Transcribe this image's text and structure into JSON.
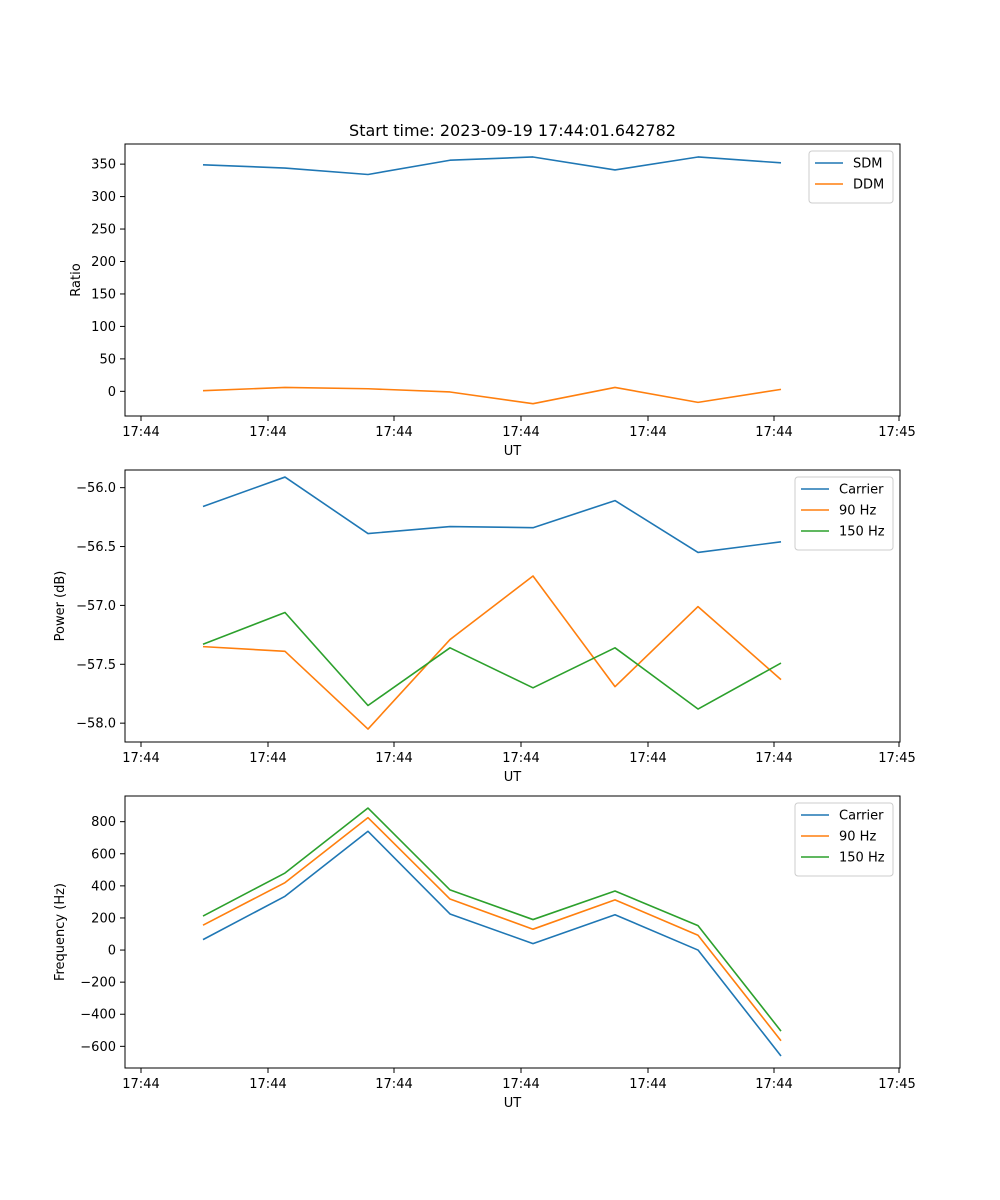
{
  "chart_data": [
    {
      "type": "line",
      "title": "Start time: 2023-09-19 17:44:01.642782",
      "xlabel": "UT",
      "ylabel": "Ratio",
      "x_tick_labels": [
        "17:44",
        "17:44",
        "17:44",
        "17:44",
        "17:44",
        "17:44",
        "17:44",
        "17:45"
      ],
      "y_ticks": [
        0,
        50,
        100,
        150,
        200,
        250,
        300,
        350
      ],
      "y_tick_labels": [
        "0",
        "50",
        "100",
        "150",
        "200",
        "250",
        "300",
        "350"
      ],
      "ylim": [
        -38,
        381
      ],
      "legend_position": "top-right",
      "series": [
        {
          "name": "SDM",
          "color": "#1f77b4",
          "values": [
            349,
            344,
            334,
            356,
            361,
            341,
            361,
            352
          ]
        },
        {
          "name": "DDM",
          "color": "#ff7f0e",
          "values": [
            1,
            6,
            4,
            -1,
            -19,
            6,
            -17,
            3
          ]
        }
      ]
    },
    {
      "type": "line",
      "title": "",
      "xlabel": "UT",
      "ylabel": "Power (dB)",
      "x_tick_labels": [
        "17:44",
        "17:44",
        "17:44",
        "17:44",
        "17:44",
        "17:44",
        "17:44",
        "17:45"
      ],
      "y_ticks": [
        -58.0,
        -57.5,
        -57.0,
        -56.5,
        -56.0
      ],
      "y_tick_labels": [
        "−58.0",
        "−57.5",
        "−57.0",
        "−56.5",
        "−56.0"
      ],
      "ylim": [
        -58.16,
        -55.85
      ],
      "legend_position": "top-right",
      "series": [
        {
          "name": "Carrier",
          "color": "#1f77b4",
          "values": [
            -56.16,
            -55.91,
            -56.39,
            -56.33,
            -56.34,
            -56.11,
            -56.55,
            -56.46
          ]
        },
        {
          "name": "90 Hz",
          "color": "#ff7f0e",
          "values": [
            -57.35,
            -57.39,
            -58.05,
            -57.29,
            -56.75,
            -57.69,
            -57.01,
            -57.63
          ]
        },
        {
          "name": "150 Hz",
          "color": "#2ca02c",
          "values": [
            -57.33,
            -57.06,
            -57.85,
            -57.36,
            -57.7,
            -57.36,
            -57.88,
            -57.49
          ]
        }
      ]
    },
    {
      "type": "line",
      "title": "",
      "xlabel": "UT",
      "ylabel": "Frequency (Hz)",
      "x_tick_labels": [
        "17:44",
        "17:44",
        "17:44",
        "17:44",
        "17:44",
        "17:44",
        "17:44",
        "17:45"
      ],
      "y_ticks": [
        -600,
        -400,
        -200,
        0,
        200,
        400,
        600,
        800
      ],
      "y_tick_labels": [
        "−600",
        "−400",
        "−200",
        "0",
        "200",
        "400",
        "600",
        "800"
      ],
      "ylim": [
        -735,
        960
      ],
      "legend_position": "top-right",
      "series": [
        {
          "name": "Carrier",
          "color": "#1f77b4",
          "values": [
            65,
            335,
            740,
            225,
            40,
            220,
            0,
            -660
          ]
        },
        {
          "name": "90 Hz",
          "color": "#ff7f0e",
          "values": [
            155,
            420,
            825,
            318,
            130,
            313,
            92,
            -565
          ]
        },
        {
          "name": "150 Hz",
          "color": "#2ca02c",
          "values": [
            212,
            480,
            885,
            375,
            190,
            368,
            152,
            -505
          ]
        }
      ]
    }
  ]
}
